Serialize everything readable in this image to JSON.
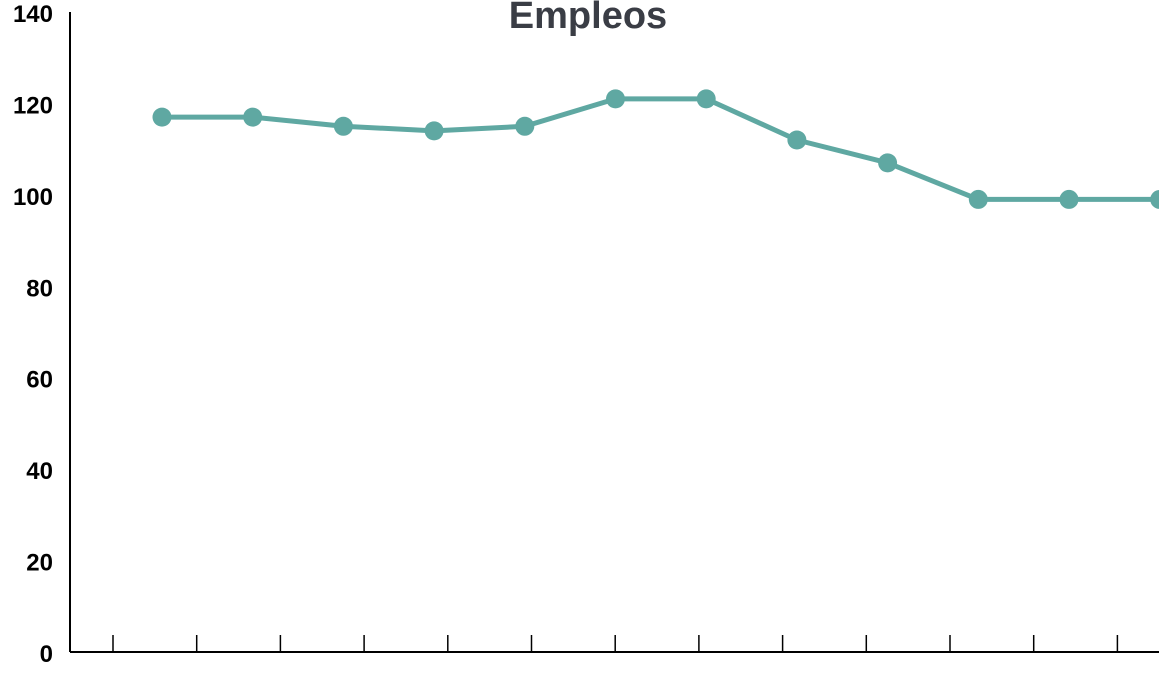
{
  "chart_data": {
    "type": "line",
    "title": "Empleos",
    "xlabel": "",
    "ylabel": "",
    "ylim": [
      0,
      140
    ],
    "yticks": [
      "0",
      "20",
      "40",
      "60",
      "80",
      "100",
      "120",
      "140"
    ],
    "series": [
      {
        "color": "#5fa8a2",
        "values": [
          117,
          117,
          115,
          114,
          115,
          121,
          121,
          112,
          107,
          99,
          99,
          99
        ]
      }
    ],
    "grid": false,
    "legend": "none"
  },
  "colors": {
    "title": "#3a3d45",
    "axis": "#000000",
    "series": "#5fa8a2"
  }
}
